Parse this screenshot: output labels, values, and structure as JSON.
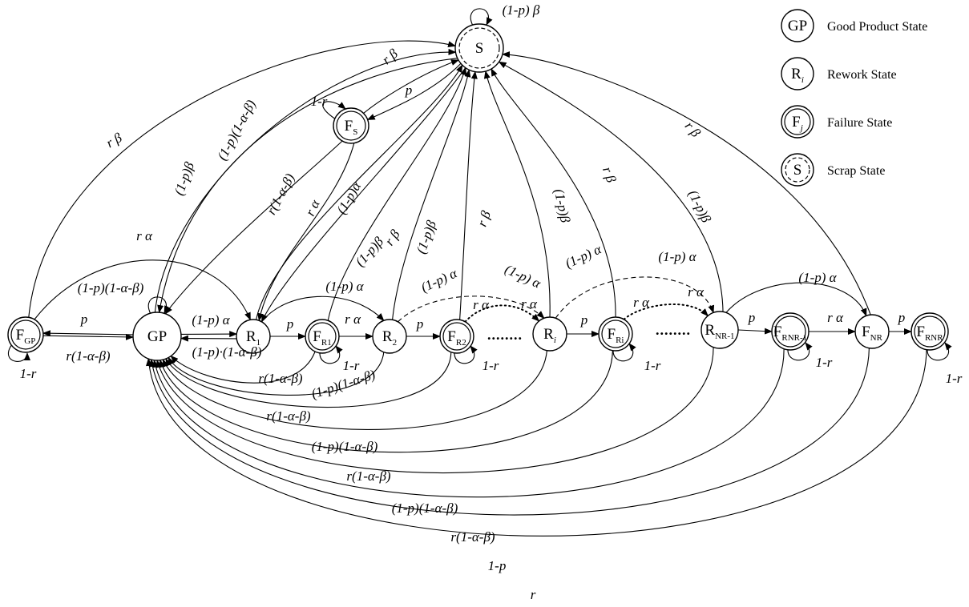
{
  "nodes": {
    "S": {
      "main": "S",
      "sub": ""
    },
    "FS": {
      "main": "F",
      "sub": "S"
    },
    "FGP": {
      "main": "F",
      "sub": "GP"
    },
    "GP": {
      "main": "GP",
      "sub": ""
    },
    "R1": {
      "main": "R",
      "sub": "1"
    },
    "FR1": {
      "main": "F",
      "sub": "R1"
    },
    "R2": {
      "main": "R",
      "sub": "2"
    },
    "FR2": {
      "main": "F",
      "sub": "R2"
    },
    "Ri": {
      "main": "R",
      "sub": "i"
    },
    "FRi": {
      "main": "F",
      "sub": "Ri"
    },
    "RNR1": {
      "main": "R",
      "sub": "NR-1"
    },
    "FRNR1": {
      "main": "F",
      "sub": "RNR-1"
    },
    "FNR": {
      "main": "F",
      "sub": "NR"
    },
    "FRNR": {
      "main": "F",
      "sub": "RNR"
    }
  },
  "ellipses": [
    "........",
    "........"
  ],
  "edge_labels": {
    "s_self": "(1-p) β",
    "fs_self": "1-r",
    "fs_s_p": "p",
    "fs_s_rb": "r β",
    "fgp_s_rb": "r β",
    "gp_s_pb": "(1-p)β",
    "gp_s_pab": "(1-p)(1-α-β)",
    "fs_gp": "r(1-α-β)",
    "fs_r1_ra": "r α",
    "s_r1_pa": "(1-p)α",
    "r1_s_pb": "(1-p)β",
    "fr1_s_rb": "r β",
    "r2_s_pb": "(1-p)β",
    "fr2_s_rb": "r β",
    "ri_s_pb": "(1-p)β",
    "fri_s_rb": "r β",
    "rnr1_s_pb": "(1-p)β",
    "fnr_s_rb": "r β",
    "fgp_r1_ra": "r α",
    "gp_self": "(1-p)(1-α-β)",
    "fgp_gp_p": "p",
    "gp_fgp_r": "r(1-α-β)",
    "fgp_self": "1-r",
    "gp_r1": "(1-p) α",
    "r1_gp": "(1-p)·(1-α-β)",
    "r1_fr1": "p",
    "r1_r2": "(1-p) α",
    "fr1_r2": "r α",
    "fr1_self": "1-r",
    "r2_fr2": "p",
    "r2_ri_pa1": "(1-p) α",
    "r2_ri_pa2": "(1-p) α",
    "fr2_ra1": "r α",
    "fr2_ra2": "r α",
    "fr2_self": "1-r",
    "ri_fri": "p",
    "ri_pa1": "(1-p) α",
    "ri_pa2": "(1-p) α",
    "fri_ra1": "r α",
    "fri_ra2": "r α",
    "fri_self": "1-r",
    "rnr1_frnr1": "p",
    "rnr1_fnr": "(1-p) α",
    "frnr1_fnr": "r α",
    "frnr1_self": "1-r",
    "fnr_frnr": "p",
    "frnr_self": "1-r",
    "fr1_gp": "r(1-α-β)",
    "r2_gp": "(1-p)(1-α-β)",
    "fr2_gp": "r(1-α-β)",
    "ri_gp": "(1-p)(1-α-β)",
    "fri_gp": "r(1-α-β)",
    "rnr1_gp": "(1-p)(1-α-β)",
    "frnr1_gp": "r(1-α-β)",
    "fnr_gp": "1-p",
    "frnr_gp": "r"
  },
  "legend": [
    {
      "symbol": "GP",
      "sub": "",
      "text": "Good Product State"
    },
    {
      "symbol": "R",
      "sub": "i",
      "text": "Rework State"
    },
    {
      "symbol": "F",
      "sub": "j",
      "text": "Failure State"
    },
    {
      "symbol": "S",
      "sub": "",
      "text": "Scrap State"
    }
  ]
}
